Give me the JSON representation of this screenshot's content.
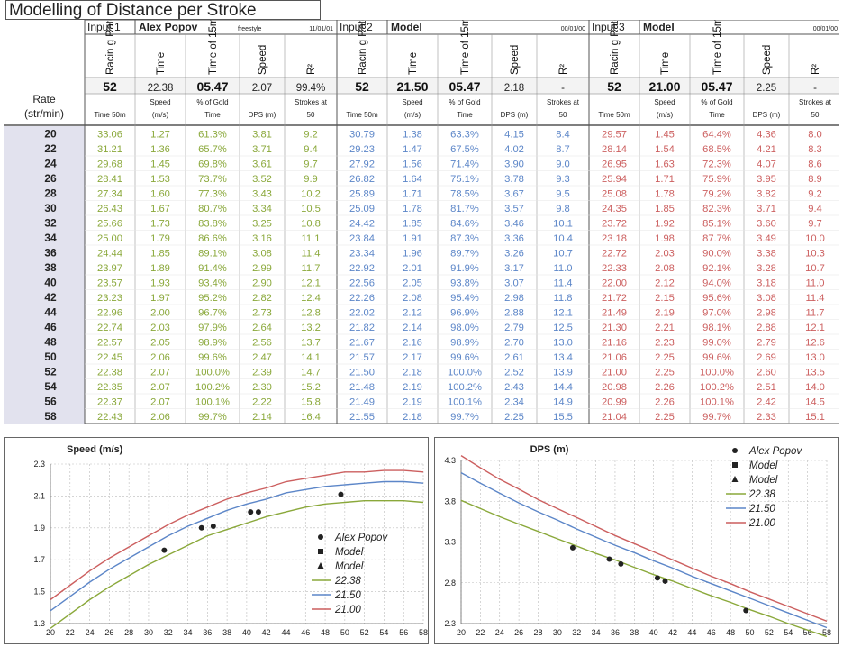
{
  "page_title": "Modelling of Distance per Stroke",
  "columns": {
    "rate_top": "Rate",
    "rate_bottom": "(str/min)",
    "vert": [
      "Racin g Rate",
      "Time",
      "Time of 15m (s)",
      "Speed",
      "R²"
    ],
    "sub": [
      "Time 50m",
      "Speed (m/s)",
      "% of Gold Time",
      "DPS (m)",
      "Strokes at 50"
    ]
  },
  "blocks": [
    {
      "input": "Input 1",
      "name": "Alex Popov",
      "event": "freestyle",
      "date": "11/01/01",
      "summary": [
        "52",
        "22.38",
        "05.47",
        "2.07",
        "99.4%"
      ]
    },
    {
      "input": "Input 2",
      "name": "Model",
      "event": "",
      "date": "00/01/00",
      "summary": [
        "52",
        "21.50",
        "05.47",
        "2.18",
        "-"
      ]
    },
    {
      "input": "Input 3",
      "name": "Model",
      "event": "",
      "date": "00/01/00",
      "summary": [
        "52",
        "21.00",
        "05.47",
        "2.25",
        "-"
      ]
    }
  ],
  "rates": [
    "20",
    "22",
    "24",
    "26",
    "28",
    "30",
    "32",
    "34",
    "36",
    "38",
    "40",
    "42",
    "44",
    "46",
    "48",
    "50",
    "52",
    "54",
    "56",
    "58"
  ],
  "table": [
    [
      [
        "33.06",
        "1.27",
        "61.3%",
        "3.81",
        "9.2"
      ],
      [
        "31.21",
        "1.36",
        "65.7%",
        "3.71",
        "9.4"
      ],
      [
        "29.68",
        "1.45",
        "69.8%",
        "3.61",
        "9.7"
      ],
      [
        "28.41",
        "1.53",
        "73.7%",
        "3.52",
        "9.9"
      ],
      [
        "27.34",
        "1.60",
        "77.3%",
        "3.43",
        "10.2"
      ],
      [
        "26.43",
        "1.67",
        "80.7%",
        "3.34",
        "10.5"
      ],
      [
        "25.66",
        "1.73",
        "83.8%",
        "3.25",
        "10.8"
      ],
      [
        "25.00",
        "1.79",
        "86.6%",
        "3.16",
        "11.1"
      ],
      [
        "24.44",
        "1.85",
        "89.1%",
        "3.08",
        "11.4"
      ],
      [
        "23.97",
        "1.89",
        "91.4%",
        "2.99",
        "11.7"
      ],
      [
        "23.57",
        "1.93",
        "93.4%",
        "2.90",
        "12.1"
      ],
      [
        "23.23",
        "1.97",
        "95.2%",
        "2.82",
        "12.4"
      ],
      [
        "22.96",
        "2.00",
        "96.7%",
        "2.73",
        "12.8"
      ],
      [
        "22.74",
        "2.03",
        "97.9%",
        "2.64",
        "13.2"
      ],
      [
        "22.57",
        "2.05",
        "98.9%",
        "2.56",
        "13.7"
      ],
      [
        "22.45",
        "2.06",
        "99.6%",
        "2.47",
        "14.1"
      ],
      [
        "22.38",
        "2.07",
        "100.0%",
        "2.39",
        "14.7"
      ],
      [
        "22.35",
        "2.07",
        "100.2%",
        "2.30",
        "15.2"
      ],
      [
        "22.37",
        "2.07",
        "100.1%",
        "2.22",
        "15.8"
      ],
      [
        "22.43",
        "2.06",
        "99.7%",
        "2.14",
        "16.4"
      ]
    ],
    [
      [
        "30.79",
        "1.38",
        "63.3%",
        "4.15",
        "8.4"
      ],
      [
        "29.23",
        "1.47",
        "67.5%",
        "4.02",
        "8.7"
      ],
      [
        "27.92",
        "1.56",
        "71.4%",
        "3.90",
        "9.0"
      ],
      [
        "26.82",
        "1.64",
        "75.1%",
        "3.78",
        "9.3"
      ],
      [
        "25.89",
        "1.71",
        "78.5%",
        "3.67",
        "9.5"
      ],
      [
        "25.09",
        "1.78",
        "81.7%",
        "3.57",
        "9.8"
      ],
      [
        "24.42",
        "1.85",
        "84.6%",
        "3.46",
        "10.1"
      ],
      [
        "23.84",
        "1.91",
        "87.3%",
        "3.36",
        "10.4"
      ],
      [
        "23.34",
        "1.96",
        "89.7%",
        "3.26",
        "10.7"
      ],
      [
        "22.92",
        "2.01",
        "91.9%",
        "3.17",
        "11.0"
      ],
      [
        "22.56",
        "2.05",
        "93.8%",
        "3.07",
        "11.4"
      ],
      [
        "22.26",
        "2.08",
        "95.4%",
        "2.98",
        "11.8"
      ],
      [
        "22.02",
        "2.12",
        "96.9%",
        "2.88",
        "12.1"
      ],
      [
        "21.82",
        "2.14",
        "98.0%",
        "2.79",
        "12.5"
      ],
      [
        "21.67",
        "2.16",
        "98.9%",
        "2.70",
        "13.0"
      ],
      [
        "21.57",
        "2.17",
        "99.6%",
        "2.61",
        "13.4"
      ],
      [
        "21.50",
        "2.18",
        "100.0%",
        "2.52",
        "13.9"
      ],
      [
        "21.48",
        "2.19",
        "100.2%",
        "2.43",
        "14.4"
      ],
      [
        "21.49",
        "2.19",
        "100.1%",
        "2.34",
        "14.9"
      ],
      [
        "21.55",
        "2.18",
        "99.7%",
        "2.25",
        "15.5"
      ]
    ],
    [
      [
        "29.57",
        "1.45",
        "64.4%",
        "4.36",
        "8.0"
      ],
      [
        "28.14",
        "1.54",
        "68.5%",
        "4.21",
        "8.3"
      ],
      [
        "26.95",
        "1.63",
        "72.3%",
        "4.07",
        "8.6"
      ],
      [
        "25.94",
        "1.71",
        "75.9%",
        "3.95",
        "8.9"
      ],
      [
        "25.08",
        "1.78",
        "79.2%",
        "3.82",
        "9.2"
      ],
      [
        "24.35",
        "1.85",
        "82.3%",
        "3.71",
        "9.4"
      ],
      [
        "23.72",
        "1.92",
        "85.1%",
        "3.60",
        "9.7"
      ],
      [
        "23.18",
        "1.98",
        "87.7%",
        "3.49",
        "10.0"
      ],
      [
        "22.72",
        "2.03",
        "90.0%",
        "3.38",
        "10.3"
      ],
      [
        "22.33",
        "2.08",
        "92.1%",
        "3.28",
        "10.7"
      ],
      [
        "22.00",
        "2.12",
        "94.0%",
        "3.18",
        "11.0"
      ],
      [
        "21.72",
        "2.15",
        "95.6%",
        "3.08",
        "11.4"
      ],
      [
        "21.49",
        "2.19",
        "97.0%",
        "2.98",
        "11.7"
      ],
      [
        "21.30",
        "2.21",
        "98.1%",
        "2.88",
        "12.1"
      ],
      [
        "21.16",
        "2.23",
        "99.0%",
        "2.79",
        "12.6"
      ],
      [
        "21.06",
        "2.25",
        "99.6%",
        "2.69",
        "13.0"
      ],
      [
        "21.00",
        "2.25",
        "100.0%",
        "2.60",
        "13.5"
      ],
      [
        "20.98",
        "2.26",
        "100.2%",
        "2.51",
        "14.0"
      ],
      [
        "20.99",
        "2.26",
        "100.1%",
        "2.42",
        "14.5"
      ],
      [
        "21.04",
        "2.25",
        "99.7%",
        "2.33",
        "15.1"
      ]
    ]
  ],
  "colors": {
    "input1": "#8aa83a",
    "input2": "#5c86c8",
    "input3": "#cc5f5f",
    "rate_bg": "#e2e2ee"
  },
  "chart_data": [
    {
      "type": "line",
      "title": "Speed (m/s)",
      "xlim": [
        20,
        58
      ],
      "ylim": [
        1.3,
        2.3
      ],
      "xticks": [
        "20",
        "22",
        "24",
        "26",
        "28",
        "30",
        "32",
        "34",
        "36",
        "38",
        "40",
        "42",
        "44",
        "46",
        "48",
        "50",
        "52",
        "54",
        "56",
        "58"
      ],
      "yticks": [
        "2.3",
        "2.1",
        "1.9",
        "1.7",
        "1.5",
        "1.3"
      ],
      "series": [
        {
          "name": "22.38",
          "color": "#8aa83a",
          "x": [
            20,
            22,
            24,
            26,
            28,
            30,
            32,
            34,
            36,
            38,
            40,
            42,
            44,
            46,
            48,
            50,
            52,
            54,
            56,
            58
          ],
          "y": [
            1.27,
            1.36,
            1.45,
            1.53,
            1.6,
            1.67,
            1.73,
            1.79,
            1.85,
            1.89,
            1.93,
            1.97,
            2.0,
            2.03,
            2.05,
            2.06,
            2.07,
            2.07,
            2.07,
            2.06
          ]
        },
        {
          "name": "21.50",
          "color": "#5c86c8",
          "x": [
            20,
            22,
            24,
            26,
            28,
            30,
            32,
            34,
            36,
            38,
            40,
            42,
            44,
            46,
            48,
            50,
            52,
            54,
            56,
            58
          ],
          "y": [
            1.38,
            1.47,
            1.56,
            1.64,
            1.71,
            1.78,
            1.85,
            1.91,
            1.96,
            2.01,
            2.05,
            2.08,
            2.12,
            2.14,
            2.16,
            2.17,
            2.18,
            2.19,
            2.19,
            2.18
          ]
        },
        {
          "name": "21.00",
          "color": "#cc5f5f",
          "x": [
            20,
            22,
            24,
            26,
            28,
            30,
            32,
            34,
            36,
            38,
            40,
            42,
            44,
            46,
            48,
            50,
            52,
            54,
            56,
            58
          ],
          "y": [
            1.45,
            1.54,
            1.63,
            1.71,
            1.78,
            1.85,
            1.92,
            1.98,
            2.03,
            2.08,
            2.12,
            2.15,
            2.19,
            2.21,
            2.23,
            2.25,
            2.25,
            2.26,
            2.26,
            2.25
          ]
        }
      ],
      "points": {
        "name": "Alex Popov",
        "x": [
          31.6,
          35.4,
          36.6,
          40.4,
          41.2,
          49.6
        ],
        "y": [
          1.76,
          1.9,
          1.91,
          2.0,
          2.0,
          2.11
        ]
      },
      "legend": [
        "Alex Popov",
        "Model",
        "Model",
        "22.38",
        "21.50",
        "21.00"
      ]
    },
    {
      "type": "line",
      "title": "DPS (m)",
      "xlim": [
        20,
        58
      ],
      "ylim": [
        2.3,
        4.3
      ],
      "xticks": [
        "20",
        "22",
        "24",
        "26",
        "28",
        "30",
        "32",
        "34",
        "36",
        "38",
        "40",
        "42",
        "44",
        "46",
        "48",
        "50",
        "52",
        "54",
        "56",
        "58"
      ],
      "yticks": [
        "4.3",
        "3.8",
        "3.3",
        "2.8",
        "2.3"
      ],
      "series": [
        {
          "name": "22.38",
          "color": "#8aa83a",
          "x": [
            20,
            22,
            24,
            26,
            28,
            30,
            32,
            34,
            36,
            38,
            40,
            42,
            44,
            46,
            48,
            50,
            52,
            54,
            56,
            58
          ],
          "y": [
            3.81,
            3.71,
            3.61,
            3.52,
            3.43,
            3.34,
            3.25,
            3.16,
            3.08,
            2.99,
            2.9,
            2.82,
            2.73,
            2.64,
            2.56,
            2.47,
            2.39,
            2.3,
            2.22,
            2.14
          ]
        },
        {
          "name": "21.50",
          "color": "#5c86c8",
          "x": [
            20,
            22,
            24,
            26,
            28,
            30,
            32,
            34,
            36,
            38,
            40,
            42,
            44,
            46,
            48,
            50,
            52,
            54,
            56,
            58
          ],
          "y": [
            4.15,
            4.02,
            3.9,
            3.78,
            3.67,
            3.57,
            3.46,
            3.36,
            3.26,
            3.17,
            3.07,
            2.98,
            2.88,
            2.79,
            2.7,
            2.61,
            2.52,
            2.43,
            2.34,
            2.25
          ]
        },
        {
          "name": "21.00",
          "color": "#cc5f5f",
          "x": [
            20,
            22,
            24,
            26,
            28,
            30,
            32,
            34,
            36,
            38,
            40,
            42,
            44,
            46,
            48,
            50,
            52,
            54,
            56,
            58
          ],
          "y": [
            4.36,
            4.21,
            4.07,
            3.95,
            3.82,
            3.71,
            3.6,
            3.49,
            3.38,
            3.28,
            3.18,
            3.08,
            2.98,
            2.88,
            2.79,
            2.69,
            2.6,
            2.51,
            2.42,
            2.33
          ]
        }
      ],
      "points": {
        "name": "Alex Popov",
        "x": [
          31.6,
          35.4,
          36.6,
          40.4,
          41.2,
          49.6
        ],
        "y": [
          3.23,
          3.09,
          3.03,
          2.86,
          2.82,
          2.46
        ]
      },
      "legend": [
        "Alex Popov",
        "Model",
        "Model",
        "22.38",
        "21.50",
        "21.00"
      ]
    }
  ]
}
